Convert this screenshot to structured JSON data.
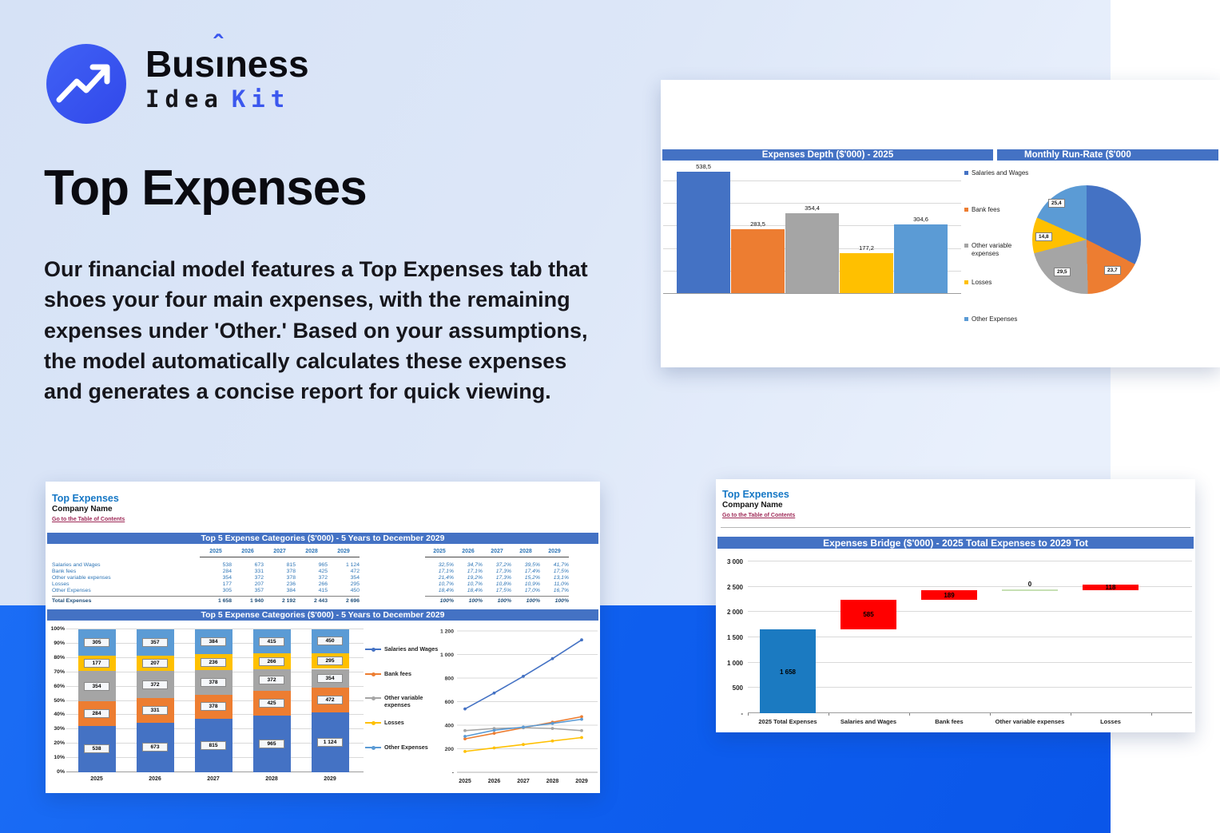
{
  "brand": {
    "name_top_pre": "Bus",
    "name_top_i": "ı",
    "name_top_post": "ness",
    "name_bottom": "Idea",
    "name_bottom_accent": "Kit"
  },
  "hero": {
    "title": "Top Expenses",
    "body": "Our financial model features a Top Expenses tab that shoes your four main expenses, with the remaining expenses under 'Other.' Based on your assumptions, the model automatically calculates these expenses and generates a concise report for quick viewing."
  },
  "colors": {
    "accent_blue": "#3b57ee",
    "band_blue": "#0e5eee",
    "header_bar_blue": "#4472c4",
    "sheet_title_blue": "#1577c5",
    "link_maroon": "#9e2a57",
    "waterfall_total": "#1b7ac1",
    "waterfall_delta": "#ff0000",
    "waterfall_zero": "#c6e0b4",
    "series": {
      "Salaries and Wages": "#4472c4",
      "Bank fees": "#ed7d31",
      "Other variable expenses": "#a5a5a5",
      "Losses": "#ffc000",
      "Other Expenses": "#5b9bd5"
    }
  },
  "sheets": {
    "left": {
      "title": "Top Expenses",
      "company": "Company Name",
      "link": "Go to the Table of Contents",
      "table_header": "Top 5 Expense Categories ($'000) - 5 Years to December 2029",
      "chart_header": "Top 5 Expense Categories ($'000) - 5 Years to December 2029",
      "years": [
        "2025",
        "2026",
        "2027",
        "2028",
        "2029"
      ],
      "rows": [
        {
          "label": "Salaries and Wages",
          "values": [
            "538",
            "673",
            "815",
            "965",
            "1 124"
          ],
          "pcts": [
            "32,5%",
            "34,7%",
            "37,2%",
            "39,5%",
            "41,7%"
          ]
        },
        {
          "label": "Bank fees",
          "values": [
            "284",
            "331",
            "378",
            "425",
            "472"
          ],
          "pcts": [
            "17,1%",
            "17,1%",
            "17,3%",
            "17,4%",
            "17,5%"
          ]
        },
        {
          "label": "Other variable expenses",
          "values": [
            "354",
            "372",
            "378",
            "372",
            "354"
          ],
          "pcts": [
            "21,4%",
            "19,2%",
            "17,3%",
            "15,2%",
            "13,1%"
          ]
        },
        {
          "label": "Losses",
          "values": [
            "177",
            "207",
            "236",
            "266",
            "295"
          ],
          "pcts": [
            "10,7%",
            "10,7%",
            "10,8%",
            "10,9%",
            "11,0%"
          ]
        },
        {
          "label": "Other Expenses",
          "values": [
            "305",
            "357",
            "384",
            "415",
            "450"
          ],
          "pcts": [
            "18,4%",
            "18,4%",
            "17,5%",
            "17,0%",
            "16,7%"
          ]
        }
      ],
      "total": {
        "label": "Total Expenses",
        "values": [
          "1 658",
          "1 940",
          "2 192",
          "2 443",
          "2 696"
        ],
        "pcts": [
          "100%",
          "100%",
          "100%",
          "100%",
          "100%"
        ]
      }
    },
    "right": {
      "title": "Top Expenses",
      "company": "Company Name",
      "link": "Go to the Table of Contents",
      "chart_header": "Expenses Bridge ($'000) - 2025 Total Expenses to 2029 Tot"
    }
  },
  "chart_data": [
    {
      "id": "expenses_depth",
      "type": "bar",
      "title": "Expenses Depth ($'000) - 2025",
      "categories": [
        "Salaries and Wages",
        "Bank fees",
        "Other variable expenses",
        "Losses",
        "Other Expenses"
      ],
      "values": [
        538.5,
        283.5,
        354.4,
        177.2,
        304.6
      ],
      "labels": [
        "538,5",
        "283,5",
        "354,4",
        "177,2",
        "304,6"
      ],
      "ylim": [
        0,
        600
      ],
      "gridline_step": 100,
      "legend_position": "right"
    },
    {
      "id": "monthly_run_rate",
      "type": "pie",
      "title": "Monthly Run-Rate ($'000",
      "slices": [
        {
          "name": "Salaries and Wages",
          "value": 44.9,
          "label": null
        },
        {
          "name": "Bank fees",
          "value": 23.7,
          "label": "23,7"
        },
        {
          "name": "Other variable expenses",
          "value": 29.5,
          "label": "29,5"
        },
        {
          "name": "Losses",
          "value": 14.8,
          "label": "14,8"
        },
        {
          "name": "Other Expenses",
          "value": 25.4,
          "label": "25,4"
        }
      ]
    },
    {
      "id": "top5_stacked",
      "type": "bar-stacked-100",
      "title": "Top 5 Expense Categories ($'000) - 5 Years to December 2029",
      "categories": [
        "2025",
        "2026",
        "2027",
        "2028",
        "2029"
      ],
      "series": [
        {
          "name": "Salaries and Wages",
          "values": [
            538,
            673,
            815,
            965,
            1124
          ],
          "labels": [
            "538",
            "673",
            "815",
            "965",
            "1 124"
          ]
        },
        {
          "name": "Bank fees",
          "values": [
            284,
            331,
            378,
            425,
            472
          ],
          "labels": [
            "284",
            "331",
            "378",
            "425",
            "472"
          ]
        },
        {
          "name": "Other variable expenses",
          "values": [
            354,
            372,
            378,
            372,
            354
          ],
          "labels": [
            "354",
            "372",
            "378",
            "372",
            "354"
          ]
        },
        {
          "name": "Losses",
          "values": [
            177,
            207,
            236,
            266,
            295
          ],
          "labels": [
            "177",
            "207",
            "236",
            "266",
            "295"
          ]
        },
        {
          "name": "Other Expenses",
          "values": [
            305,
            357,
            384,
            415,
            450
          ],
          "labels": [
            "305",
            "357",
            "384",
            "415",
            "450"
          ]
        }
      ],
      "yticks": [
        "0%",
        "10%",
        "20%",
        "30%",
        "40%",
        "50%",
        "60%",
        "70%",
        "80%",
        "90%",
        "100%"
      ]
    },
    {
      "id": "top5_lines",
      "type": "line",
      "x": [
        "2025",
        "2026",
        "2027",
        "2028",
        "2029"
      ],
      "series": [
        {
          "name": "Salaries and Wages",
          "values": [
            538,
            673,
            815,
            965,
            1124
          ]
        },
        {
          "name": "Bank fees",
          "values": [
            284,
            331,
            378,
            425,
            472
          ]
        },
        {
          "name": "Other variable expenses",
          "values": [
            354,
            372,
            378,
            372,
            354
          ]
        },
        {
          "name": "Losses",
          "values": [
            177,
            207,
            236,
            266,
            295
          ]
        },
        {
          "name": "Other Expenses",
          "values": [
            305,
            357,
            384,
            415,
            450
          ]
        }
      ],
      "ylim": [
        0,
        1200
      ],
      "yticks": [
        "-",
        "200",
        "400",
        "600",
        "800",
        "1 000",
        "1 200"
      ],
      "legend_position": "left"
    },
    {
      "id": "expenses_bridge",
      "type": "waterfall",
      "title": "Expenses Bridge ($'000) - 2025 Total Expenses to 2029 Tot",
      "categories": [
        "2025 Total Expenses",
        "Salaries and Wages",
        "Bank fees",
        "Other variable expenses",
        "Losses"
      ],
      "values": [
        1658,
        585,
        189,
        0,
        118
      ],
      "labels": [
        "1 658",
        "585",
        "189",
        "0",
        "118"
      ],
      "ylim": [
        0,
        3000
      ],
      "yticks": [
        "-",
        "500",
        "1 000",
        "1 500",
        "2 000",
        "2 500",
        "3 000"
      ]
    }
  ]
}
